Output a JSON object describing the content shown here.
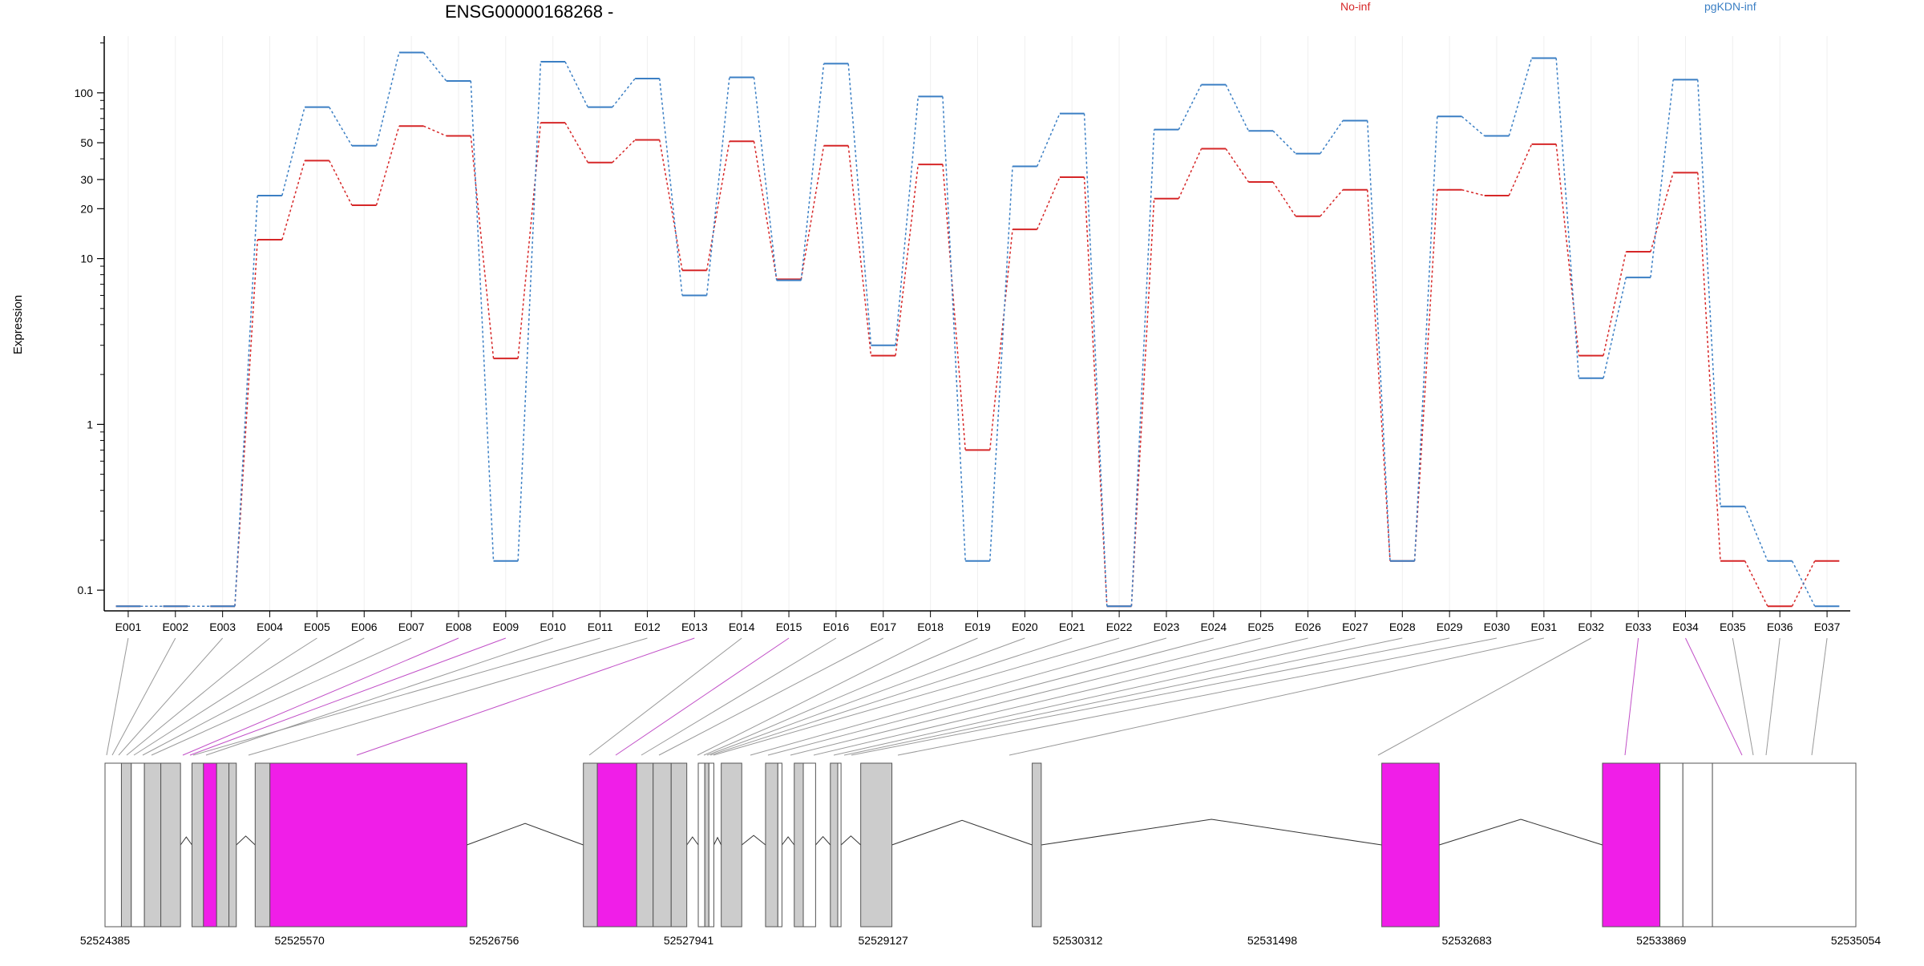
{
  "chart_data": {
    "type": "line",
    "title": "ENSG00000168268 -",
    "ylabel": "Expression",
    "y_scale": "log",
    "y_ticks": [
      0.1,
      1,
      10,
      20,
      30,
      50,
      100
    ],
    "y_tick_labels": [
      "0.1",
      "1",
      "10",
      "20",
      "30",
      "50",
      "100"
    ],
    "ylim": [
      0.075,
      220
    ],
    "categories": [
      "E001",
      "E002",
      "E003",
      "E004",
      "E005",
      "E006",
      "E007",
      "E008",
      "E009",
      "E010",
      "E011",
      "E012",
      "E013",
      "E014",
      "E015",
      "E016",
      "E017",
      "E018",
      "E019",
      "E020",
      "E021",
      "E022",
      "E023",
      "E024",
      "E025",
      "E026",
      "E027",
      "E028",
      "E029",
      "E030",
      "E031",
      "E032",
      "E033",
      "E034",
      "E035",
      "E036",
      "E037"
    ],
    "series": [
      {
        "name": "No-inf",
        "color": "#d62728",
        "values": [
          0.08,
          0.08,
          0.08,
          13,
          39,
          21,
          63,
          55,
          2.5,
          66,
          38,
          52,
          8.5,
          51,
          7.5,
          48,
          2.6,
          37,
          0.7,
          15,
          31,
          0.08,
          23,
          46,
          29,
          18,
          26,
          0.15,
          26,
          24,
          49,
          2.6,
          11,
          33,
          0.15,
          0.08,
          0.15
        ]
      },
      {
        "name": "pgKDN-inf",
        "color": "#3b7fc4",
        "values": [
          0.08,
          0.08,
          0.08,
          24,
          82,
          48,
          175,
          118,
          0.15,
          154,
          82,
          122,
          6,
          124,
          7.4,
          150,
          3,
          95,
          0.15,
          36,
          75,
          0.08,
          60,
          112,
          59,
          43,
          68,
          0.15,
          72,
          55,
          162,
          1.9,
          7.7,
          120,
          0.32,
          0.15,
          0.08
        ]
      }
    ],
    "gene_model": {
      "x_ticks": [
        "52524385",
        "52525570",
        "52526756",
        "52527941",
        "52529127",
        "52530312",
        "52531498",
        "52532683",
        "52533869",
        "52535054"
      ],
      "exon_colors": {
        "constitutive": "#cccccc",
        "significant": "#f01ee8",
        "other": "#ffffff"
      }
    }
  }
}
